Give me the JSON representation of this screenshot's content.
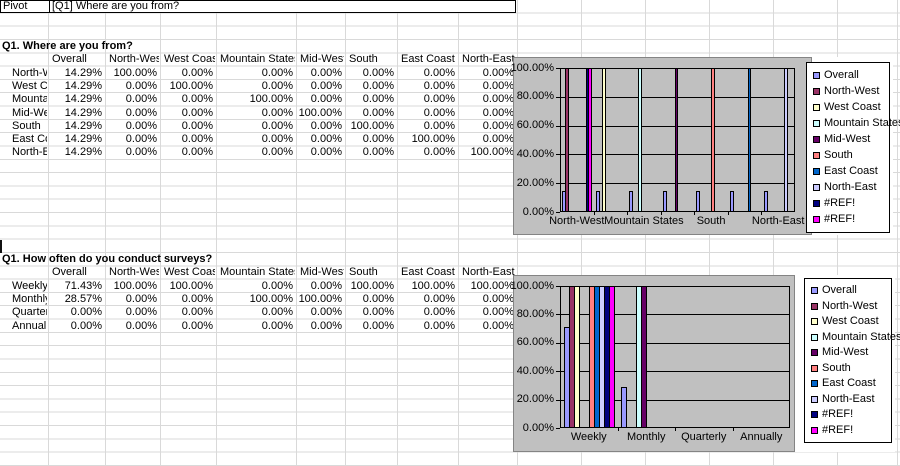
{
  "sheet": {
    "pivot_bar": {
      "cell_a": "Pivot",
      "cell_b": "[Q1] Where are you from?"
    }
  },
  "colors": {
    "chart_bg": "#C0C0C0",
    "sheet_gridline": "#D9D9D9",
    "chart_gridline": "#000000",
    "legend_bg": "#FFFFFF"
  },
  "tables": [
    {
      "title": "Q1. Where are you from?",
      "columns": [
        "Overall",
        "North-West",
        "West Coast",
        "Mountain States",
        "Mid-West",
        "South",
        "East Coast",
        "North-East"
      ],
      "rows": [
        {
          "label": "North-West",
          "values": [
            "14.29%",
            "100.00%",
            "0.00%",
            "0.00%",
            "0.00%",
            "0.00%",
            "0.00%",
            "0.00%"
          ]
        },
        {
          "label": "West Coast",
          "values": [
            "14.29%",
            "0.00%",
            "100.00%",
            "0.00%",
            "0.00%",
            "0.00%",
            "0.00%",
            "0.00%"
          ]
        },
        {
          "label": "Mountain States",
          "values": [
            "14.29%",
            "0.00%",
            "0.00%",
            "100.00%",
            "0.00%",
            "0.00%",
            "0.00%",
            "0.00%"
          ]
        },
        {
          "label": "Mid-West",
          "values": [
            "14.29%",
            "0.00%",
            "0.00%",
            "0.00%",
            "100.00%",
            "0.00%",
            "0.00%",
            "0.00%"
          ]
        },
        {
          "label": "South",
          "values": [
            "14.29%",
            "0.00%",
            "0.00%",
            "0.00%",
            "0.00%",
            "100.00%",
            "0.00%",
            "0.00%"
          ]
        },
        {
          "label": "East Coast",
          "values": [
            "14.29%",
            "0.00%",
            "0.00%",
            "0.00%",
            "0.00%",
            "0.00%",
            "100.00%",
            "0.00%"
          ]
        },
        {
          "label": "North-East",
          "values": [
            "14.29%",
            "0.00%",
            "0.00%",
            "0.00%",
            "0.00%",
            "0.00%",
            "0.00%",
            "100.00%"
          ]
        }
      ]
    },
    {
      "title": "Q1. How often do you conduct surveys?",
      "columns": [
        "Overall",
        "North-West",
        "West Coast",
        "Mountain States",
        "Mid-West",
        "South",
        "East Coast",
        "North-East"
      ],
      "rows": [
        {
          "label": "Weekly",
          "values": [
            "71.43%",
            "100.00%",
            "100.00%",
            "0.00%",
            "0.00%",
            "100.00%",
            "100.00%",
            "100.00%"
          ]
        },
        {
          "label": "Monthly",
          "values": [
            "28.57%",
            "0.00%",
            "0.00%",
            "100.00%",
            "100.00%",
            "0.00%",
            "0.00%",
            "0.00%"
          ]
        },
        {
          "label": "Quarterly",
          "values": [
            "0.00%",
            "0.00%",
            "0.00%",
            "0.00%",
            "0.00%",
            "0.00%",
            "0.00%",
            "0.00%"
          ]
        },
        {
          "label": "Annually",
          "values": [
            "0.00%",
            "0.00%",
            "0.00%",
            "0.00%",
            "0.00%",
            "0.00%",
            "0.00%",
            "0.00%"
          ]
        }
      ]
    }
  ],
  "chart_data": [
    {
      "type": "bar",
      "title": "",
      "plot_bg": "#C0C0C0",
      "grid": true,
      "legend_position": "right",
      "ylim": [
        0,
        100
      ],
      "yticks": [
        "0.00%",
        "20.00%",
        "40.00%",
        "60.00%",
        "80.00%",
        "100.00%"
      ],
      "categories": [
        "North-West",
        "West Coast",
        "Mountain States",
        "Mid-West",
        "South",
        "East Coast",
        "North-East"
      ],
      "x_ticks": [
        {
          "label": "North-West",
          "cat": 0
        },
        {
          "label": "Mountain States",
          "cat": 2
        },
        {
          "label": "South",
          "cat": 4
        },
        {
          "label": "North-East",
          "cat": 6
        }
      ],
      "series": [
        {
          "name": "Overall",
          "color": "#9999FF",
          "values": [
            14.29,
            14.29,
            14.29,
            14.29,
            14.29,
            14.29,
            14.29
          ]
        },
        {
          "name": "North-West",
          "color": "#993366",
          "values": [
            100,
            0,
            0,
            0,
            0,
            0,
            0
          ]
        },
        {
          "name": "West Coast",
          "color": "#FFFFCC",
          "values": [
            0,
            100,
            0,
            0,
            0,
            0,
            0
          ]
        },
        {
          "name": "Mountain States",
          "color": "#CCFFFF",
          "values": [
            0,
            0,
            100,
            0,
            0,
            0,
            0
          ]
        },
        {
          "name": "Mid-West",
          "color": "#660066",
          "values": [
            0,
            0,
            0,
            100,
            0,
            0,
            0
          ]
        },
        {
          "name": "South",
          "color": "#FF8080",
          "values": [
            0,
            0,
            0,
            0,
            100,
            0,
            0
          ]
        },
        {
          "name": "East Coast",
          "color": "#0066CC",
          "values": [
            0,
            0,
            0,
            0,
            0,
            100,
            0
          ]
        },
        {
          "name": "North-East",
          "color": "#CCCCFF",
          "values": [
            0,
            0,
            0,
            0,
            0,
            0,
            100
          ]
        },
        {
          "name": "#REF!",
          "color": "#000080",
          "values": [
            100,
            0,
            0,
            0,
            0,
            0,
            0
          ]
        },
        {
          "name": "#REF!",
          "color": "#FF00FF",
          "values": [
            100,
            0,
            0,
            0,
            0,
            0,
            0
          ]
        }
      ]
    },
    {
      "type": "bar",
      "title": "",
      "plot_bg": "#C0C0C0",
      "grid": true,
      "legend_position": "right",
      "ylim": [
        0,
        100
      ],
      "yticks": [
        "0.00%",
        "20.00%",
        "40.00%",
        "60.00%",
        "80.00%",
        "100.00%"
      ],
      "categories": [
        "Weekly",
        "Monthly",
        "Quarterly",
        "Annually"
      ],
      "x_ticks": [
        {
          "label": "Weekly",
          "cat": 0
        },
        {
          "label": "Monthly",
          "cat": 1
        },
        {
          "label": "Quarterly",
          "cat": 2
        },
        {
          "label": "Annually",
          "cat": 3
        }
      ],
      "series": [
        {
          "name": "Overall",
          "color": "#9999FF",
          "values": [
            71.43,
            28.57,
            0,
            0
          ]
        },
        {
          "name": "North-West",
          "color": "#993366",
          "values": [
            100,
            0,
            0,
            0
          ]
        },
        {
          "name": "West Coast",
          "color": "#FFFFCC",
          "values": [
            100,
            0,
            0,
            0
          ]
        },
        {
          "name": "Mountain States",
          "color": "#CCFFFF",
          "values": [
            0,
            100,
            0,
            0
          ]
        },
        {
          "name": "Mid-West",
          "color": "#660066",
          "values": [
            0,
            100,
            0,
            0
          ]
        },
        {
          "name": "South",
          "color": "#FF8080",
          "values": [
            100,
            0,
            0,
            0
          ]
        },
        {
          "name": "East Coast",
          "color": "#0066CC",
          "values": [
            100,
            0,
            0,
            0
          ]
        },
        {
          "name": "North-East",
          "color": "#CCCCFF",
          "values": [
            100,
            0,
            0,
            0
          ]
        },
        {
          "name": "#REF!",
          "color": "#000080",
          "values": [
            100,
            0,
            0,
            0
          ]
        },
        {
          "name": "#REF!",
          "color": "#FF00FF",
          "values": [
            100,
            0,
            0,
            0
          ]
        }
      ]
    }
  ]
}
